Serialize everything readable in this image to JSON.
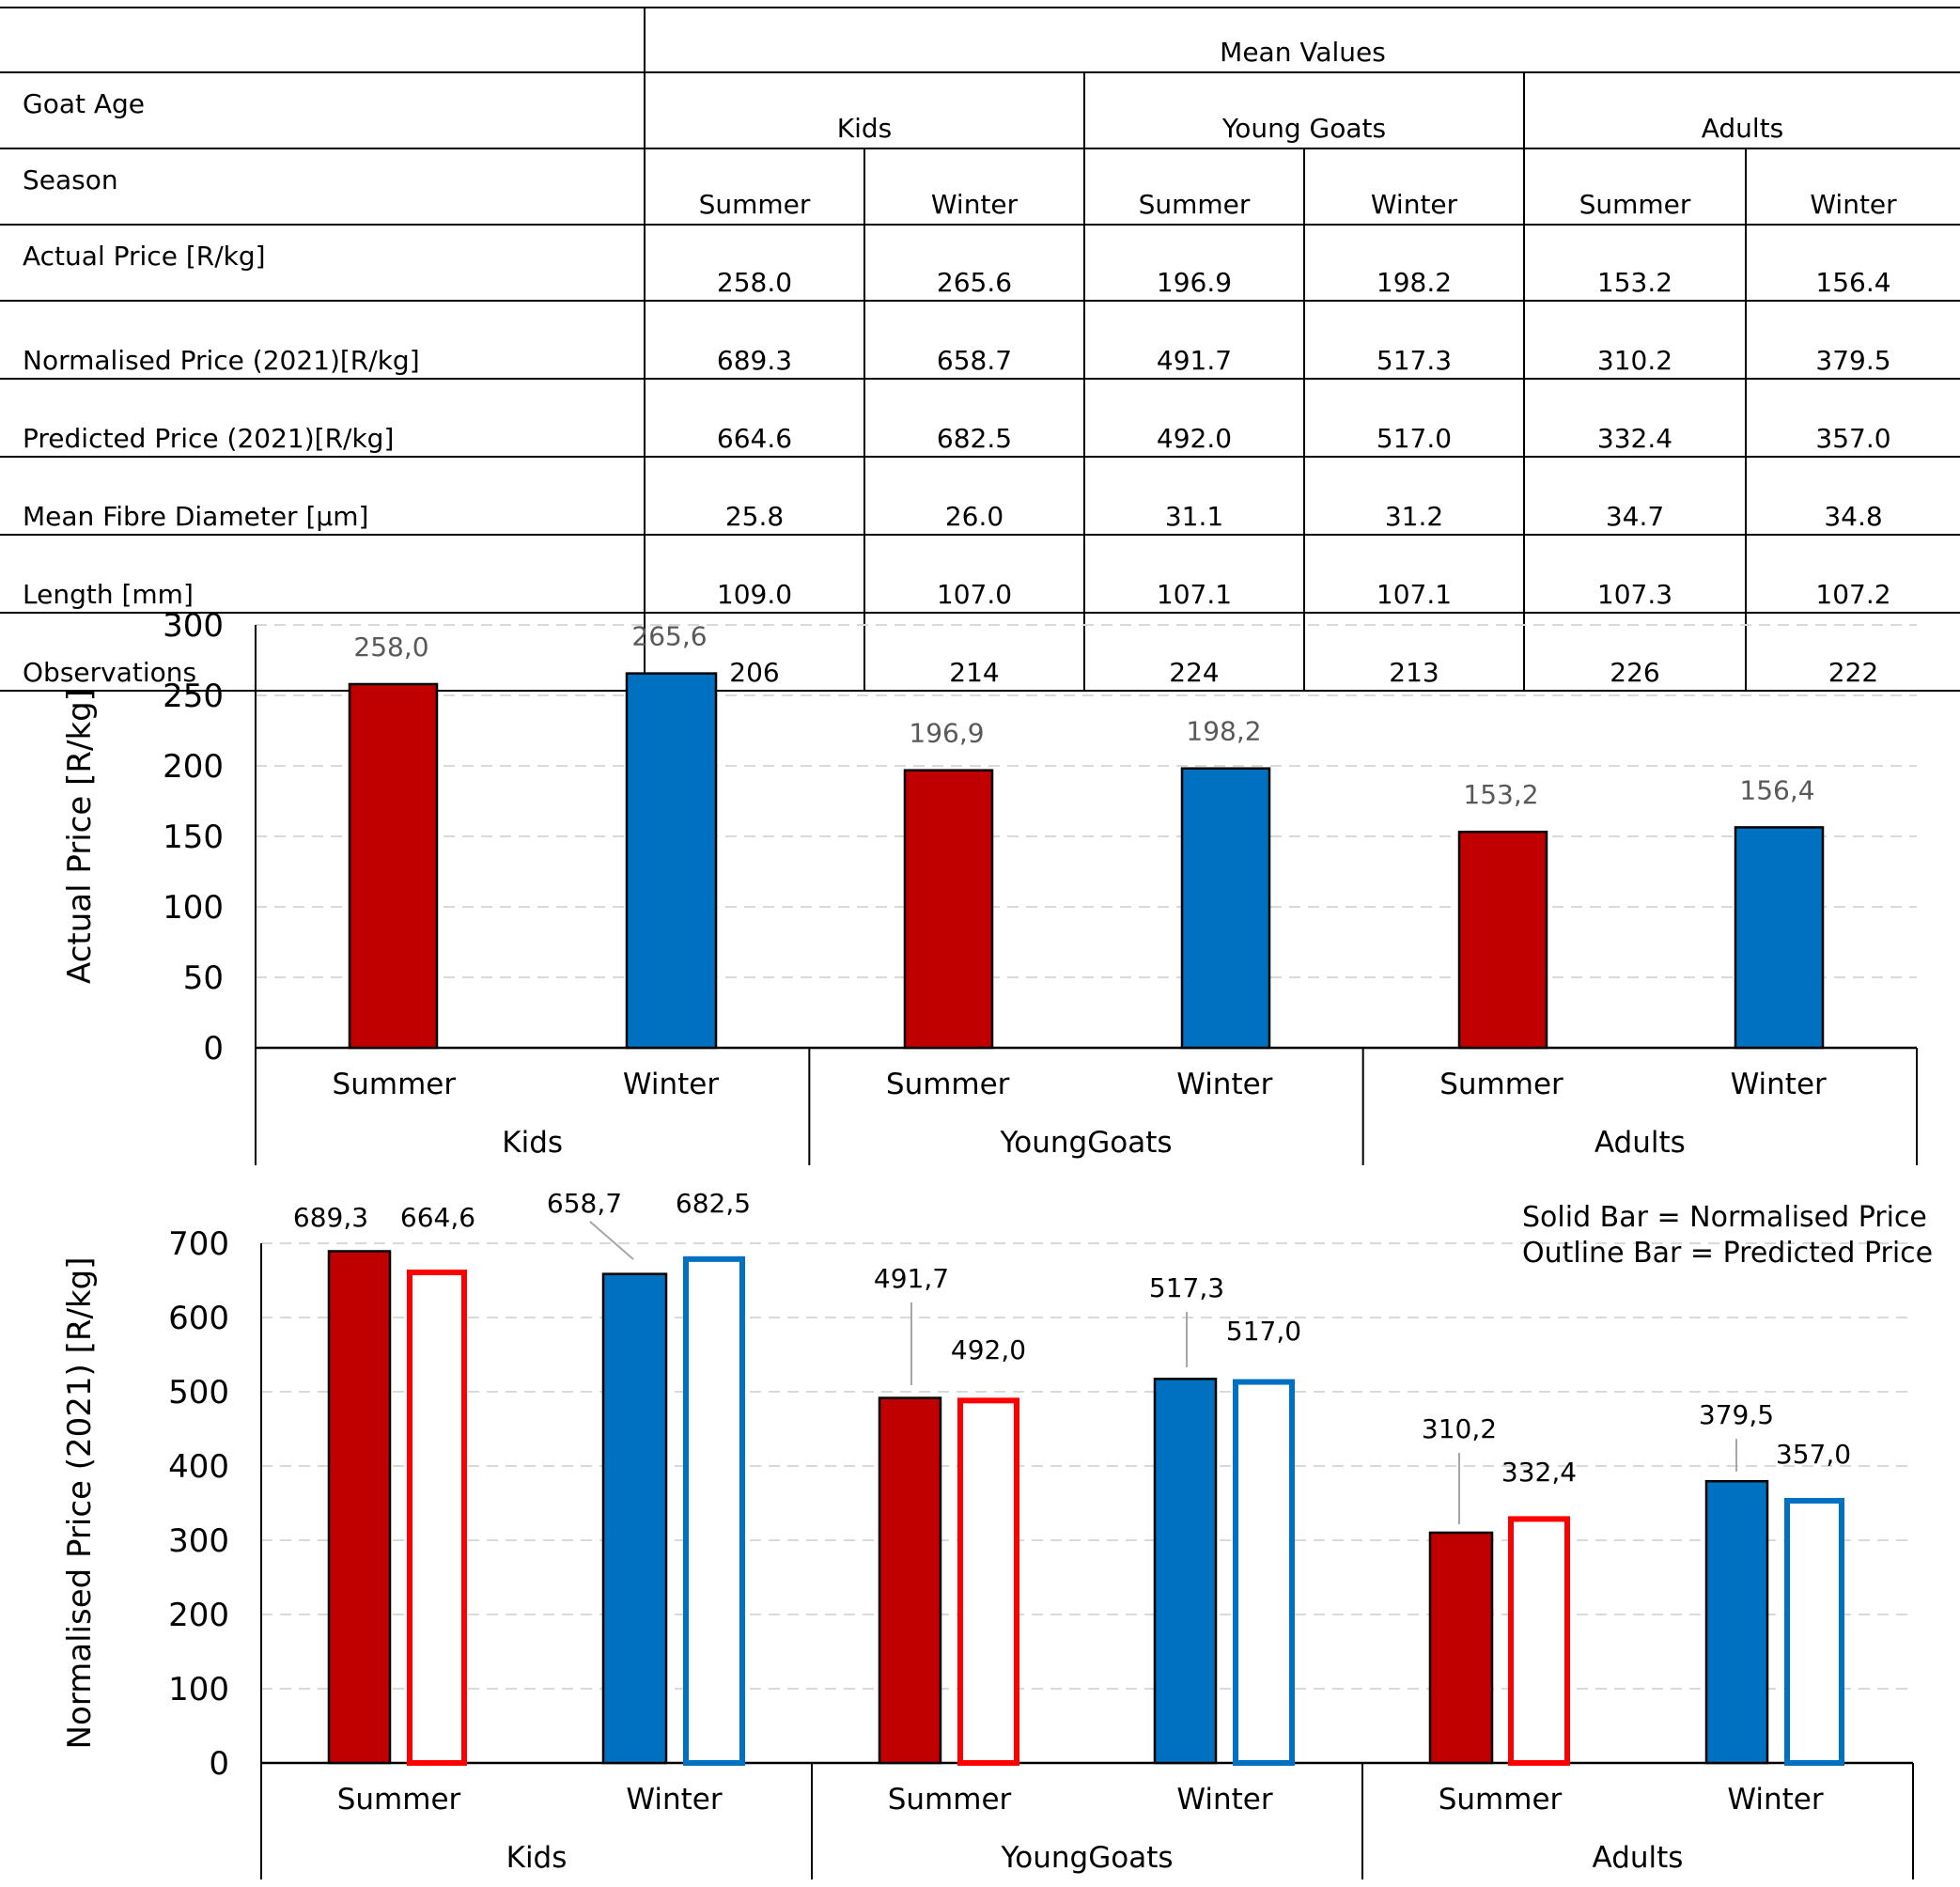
{
  "table": {
    "mean_values_label": "Mean Values",
    "goat_age_label": "Goat Age",
    "season_label": "Season",
    "age_groups": [
      "Kids",
      "Young Goats",
      "Adults"
    ],
    "seasons": [
      "Summer",
      "Winter",
      "Summer",
      "Winter",
      "Summer",
      "Winter"
    ],
    "rows": [
      {
        "label": "Actual Price [R/kg]",
        "values": [
          "258.0",
          "265.6",
          "196.9",
          "198.2",
          "153.2",
          "156.4"
        ]
      },
      {
        "label": "Normalised Price (2021)[R/kg]",
        "values": [
          "689.3",
          "658.7",
          "491.7",
          "517.3",
          "310.2",
          "379.5"
        ]
      },
      {
        "label": "Predicted Price (2021)[R/kg]",
        "values": [
          "664.6",
          "682.5",
          "492.0",
          "517.0",
          "332.4",
          "357.0"
        ]
      },
      {
        "label": "Mean Fibre Diameter [µm]",
        "values": [
          "25.8",
          "26.0",
          "31.1",
          "31.2",
          "34.7",
          "34.8"
        ]
      },
      {
        "label": "Length [mm]",
        "values": [
          "109.0",
          "107.0",
          "107.1",
          "107.1",
          "107.3",
          "107.2"
        ]
      },
      {
        "label": "Observations",
        "values": [
          "206",
          "214",
          "224",
          "213",
          "226",
          "222"
        ]
      }
    ]
  },
  "colors": {
    "summer": "#C00000",
    "winter": "#0070C0",
    "summer_outline": "#FF0000",
    "winter_outline": "#0070C0",
    "grid": "#D9D9D9",
    "value_label_top": "#595959",
    "leader_line": "#A6A6A6"
  },
  "chart_data": [
    {
      "type": "bar",
      "title": "",
      "ylabel": "Actual Price [R/kg]",
      "xlabel": "",
      "ylim": [
        0,
        300
      ],
      "yticks": [
        0,
        50,
        100,
        150,
        200,
        250,
        300
      ],
      "groups": [
        "Kids",
        "YoungGoats",
        "Adults"
      ],
      "categories": [
        "Summer",
        "Winter",
        "Summer",
        "Winter",
        "Summer",
        "Winter"
      ],
      "series": [
        {
          "name": "Actual Price",
          "values": [
            258.0,
            265.6,
            196.9,
            198.2,
            153.2,
            156.4
          ],
          "labels": [
            "258,0",
            "265,6",
            "196,9",
            "198,2",
            "153,2",
            "156,4"
          ]
        }
      ],
      "grid": true
    },
    {
      "type": "bar",
      "title": "",
      "ylabel": "Normalised Price (2021) [R/kg]",
      "xlabel": "",
      "ylim": [
        0,
        700
      ],
      "yticks": [
        0,
        100,
        200,
        300,
        400,
        500,
        600,
        700
      ],
      "groups": [
        "Kids",
        "YoungGoats",
        "Adults"
      ],
      "categories": [
        "Summer",
        "Winter",
        "Summer",
        "Winter",
        "Summer",
        "Winter"
      ],
      "series": [
        {
          "name": "Normalised Price",
          "style": "solid",
          "values": [
            689.3,
            658.7,
            491.7,
            517.3,
            310.2,
            379.5
          ],
          "labels": [
            "689,3",
            "658,7",
            "491,7",
            "517,3",
            "310,2",
            "379,5"
          ]
        },
        {
          "name": "Predicted Price",
          "style": "outline",
          "values": [
            664.6,
            682.5,
            492.0,
            517.0,
            332.4,
            357.0
          ],
          "labels": [
            "664,6",
            "682,5",
            "492,0",
            "517,0",
            "332,4",
            "357,0"
          ]
        }
      ],
      "legend_lines": [
        "Solid Bar = Normalised Price",
        "Outline Bar = Predicted Price"
      ],
      "legend_position": "top-right",
      "grid": true
    }
  ]
}
